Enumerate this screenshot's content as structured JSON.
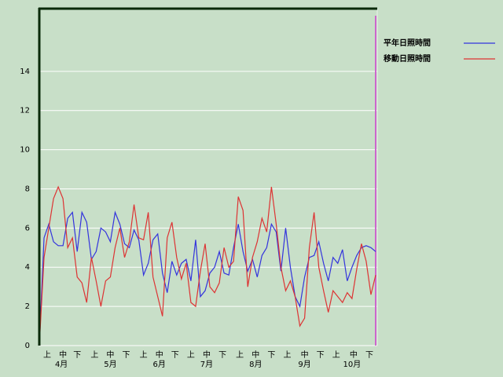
{
  "chart_data": {
    "type": "line",
    "x": [
      0,
      3,
      6,
      9,
      12,
      15,
      18,
      21,
      24,
      27,
      30,
      33,
      36,
      39,
      42,
      45,
      48,
      51,
      54,
      57,
      60,
      63,
      66,
      69,
      72,
      75,
      78,
      81,
      84,
      87,
      90,
      93,
      96,
      99,
      102,
      105,
      108,
      111,
      114,
      117,
      120,
      123,
      126,
      129,
      132,
      135,
      138,
      141,
      144,
      147,
      150,
      153,
      156,
      159,
      162,
      165,
      168,
      171,
      174,
      177,
      180,
      183,
      186,
      189,
      192,
      195,
      198,
      201,
      204,
      207,
      210,
      213
    ],
    "series": [
      {
        "name": "平年日照時間",
        "color": "#3333dd",
        "values": [
          0,
          5.5,
          6.2,
          5.3,
          5.1,
          5.1,
          6.5,
          6.8,
          4.8,
          6.8,
          6.3,
          4.4,
          4.8,
          6.0,
          5.8,
          5.3,
          6.8,
          6.2,
          5.2,
          5.0,
          5.9,
          5.4,
          3.6,
          4.2,
          5.4,
          5.7,
          3.7,
          2.7,
          4.3,
          3.6,
          4.2,
          4.4,
          3.3,
          5.4,
          2.5,
          2.8,
          3.7,
          4.0,
          4.8,
          3.7,
          3.6,
          5.0,
          6.2,
          4.8,
          3.8,
          4.4,
          3.5,
          4.6,
          5.0,
          6.2,
          5.8,
          3.8,
          6.0,
          4.0,
          2.5,
          2.0,
          3.5,
          4.5,
          4.6,
          5.3,
          4.2,
          3.3,
          4.5,
          4.2,
          4.9,
          3.3,
          4.0,
          4.6,
          5.0,
          5.1,
          5.0,
          4.8
        ]
      },
      {
        "name": "移動日照時間",
        "color": "#dd3333",
        "values": [
          0,
          4.5,
          6.0,
          7.5,
          8.1,
          7.5,
          5.0,
          5.5,
          3.5,
          3.2,
          2.2,
          4.5,
          3.3,
          2.0,
          3.3,
          3.5,
          5.0,
          6.0,
          4.5,
          5.3,
          7.2,
          5.5,
          5.4,
          6.8,
          3.5,
          2.5,
          1.5,
          5.5,
          6.3,
          4.5,
          3.4,
          4.2,
          2.2,
          2.0,
          3.8,
          5.2,
          3.0,
          2.7,
          3.2,
          5.0,
          4.0,
          4.3,
          7.6,
          6.9,
          3.0,
          4.5,
          5.3,
          6.5,
          5.8,
          8.1,
          6.2,
          4.0,
          2.8,
          3.3,
          2.5,
          1.0,
          1.4,
          5.0,
          6.8,
          4.0,
          2.8,
          1.7,
          2.8,
          2.5,
          2.2,
          2.7,
          2.4,
          3.9,
          5.2,
          4.3,
          2.6,
          3.6
        ]
      }
    ],
    "xlim": [
      0,
      214
    ],
    "xticks": [
      {
        "value": 5,
        "label": "上"
      },
      {
        "value": 15,
        "label": "中"
      },
      {
        "value": 24,
        "label": "下"
      },
      {
        "value": 35,
        "label": "上"
      },
      {
        "value": 45,
        "label": "中"
      },
      {
        "value": 55,
        "label": "下"
      },
      {
        "value": 66,
        "label": "上"
      },
      {
        "value": 76,
        "label": "中"
      },
      {
        "value": 86,
        "label": "下"
      },
      {
        "value": 96,
        "label": "上"
      },
      {
        "value": 106,
        "label": "中"
      },
      {
        "value": 116,
        "label": "下"
      },
      {
        "value": 127,
        "label": "上"
      },
      {
        "value": 137,
        "label": "中"
      },
      {
        "value": 147,
        "label": "下"
      },
      {
        "value": 157,
        "label": "上"
      },
      {
        "value": 168,
        "label": "中"
      },
      {
        "value": 178,
        "label": "下"
      },
      {
        "value": 188,
        "label": "上"
      },
      {
        "value": 199,
        "label": "中"
      },
      {
        "value": 209,
        "label": "下"
      }
    ],
    "month_labels": [
      {
        "value": 14,
        "label": "4月"
      },
      {
        "value": 45,
        "label": "5月"
      },
      {
        "value": 76,
        "label": "6月"
      },
      {
        "value": 106,
        "label": "7月"
      },
      {
        "value": 137,
        "label": "8月"
      },
      {
        "value": 168,
        "label": "9月"
      },
      {
        "value": 198,
        "label": "10月"
      }
    ],
    "ylim": [
      0,
      17.2
    ],
    "yticks": [
      0,
      2,
      4,
      6,
      8,
      10,
      12,
      14
    ],
    "grid": true,
    "legend": "top-right",
    "marker": {
      "x": 213,
      "color": "#cc66cc"
    }
  }
}
